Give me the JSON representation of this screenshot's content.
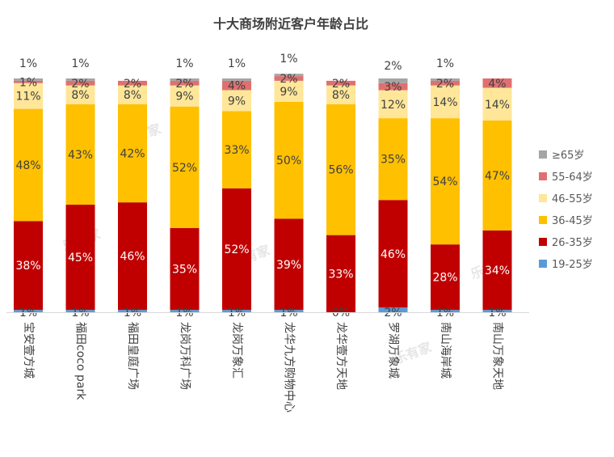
{
  "chart_data": {
    "type": "stacked-bar-100",
    "title": "十大商场附近客户年龄占比",
    "categories": [
      "宝安壹方城",
      "福田coco park",
      "福田皇庭广场",
      "龙岗万科广场",
      "龙岗万象汇",
      "龙华九方购物中心",
      "龙华壹方天地",
      "罗湖万象城",
      "南山海岸城",
      "南山万象天地"
    ],
    "series": [
      {
        "name": "19-25岁",
        "color": "#5b9bd5",
        "values": [
          1,
          1,
          1,
          1,
          1,
          1,
          0,
          2,
          1,
          1
        ]
      },
      {
        "name": "26-35岁",
        "color": "#c00000",
        "values": [
          38,
          45,
          46,
          35,
          52,
          39,
          33,
          46,
          28,
          34
        ]
      },
      {
        "name": "36-45岁",
        "color": "#ffc000",
        "values": [
          48,
          43,
          42,
          52,
          33,
          50,
          56,
          35,
          54,
          47
        ]
      },
      {
        "name": "46-55岁",
        "color": "#ffe699",
        "values": [
          11,
          8,
          8,
          9,
          9,
          9,
          8,
          12,
          14,
          14
        ]
      },
      {
        "name": "55-64岁",
        "color": "#e07070",
        "values": [
          1,
          2,
          2,
          2,
          4,
          2,
          2,
          3,
          2,
          4
        ]
      },
      {
        "name": "≥65岁",
        "color": "#a5a5a5",
        "values": [
          1,
          1,
          0,
          1,
          1,
          1,
          0,
          2,
          1,
          0
        ]
      }
    ],
    "legend_position": "right",
    "ylim": [
      0,
      100
    ]
  },
  "watermark": "乐有家"
}
